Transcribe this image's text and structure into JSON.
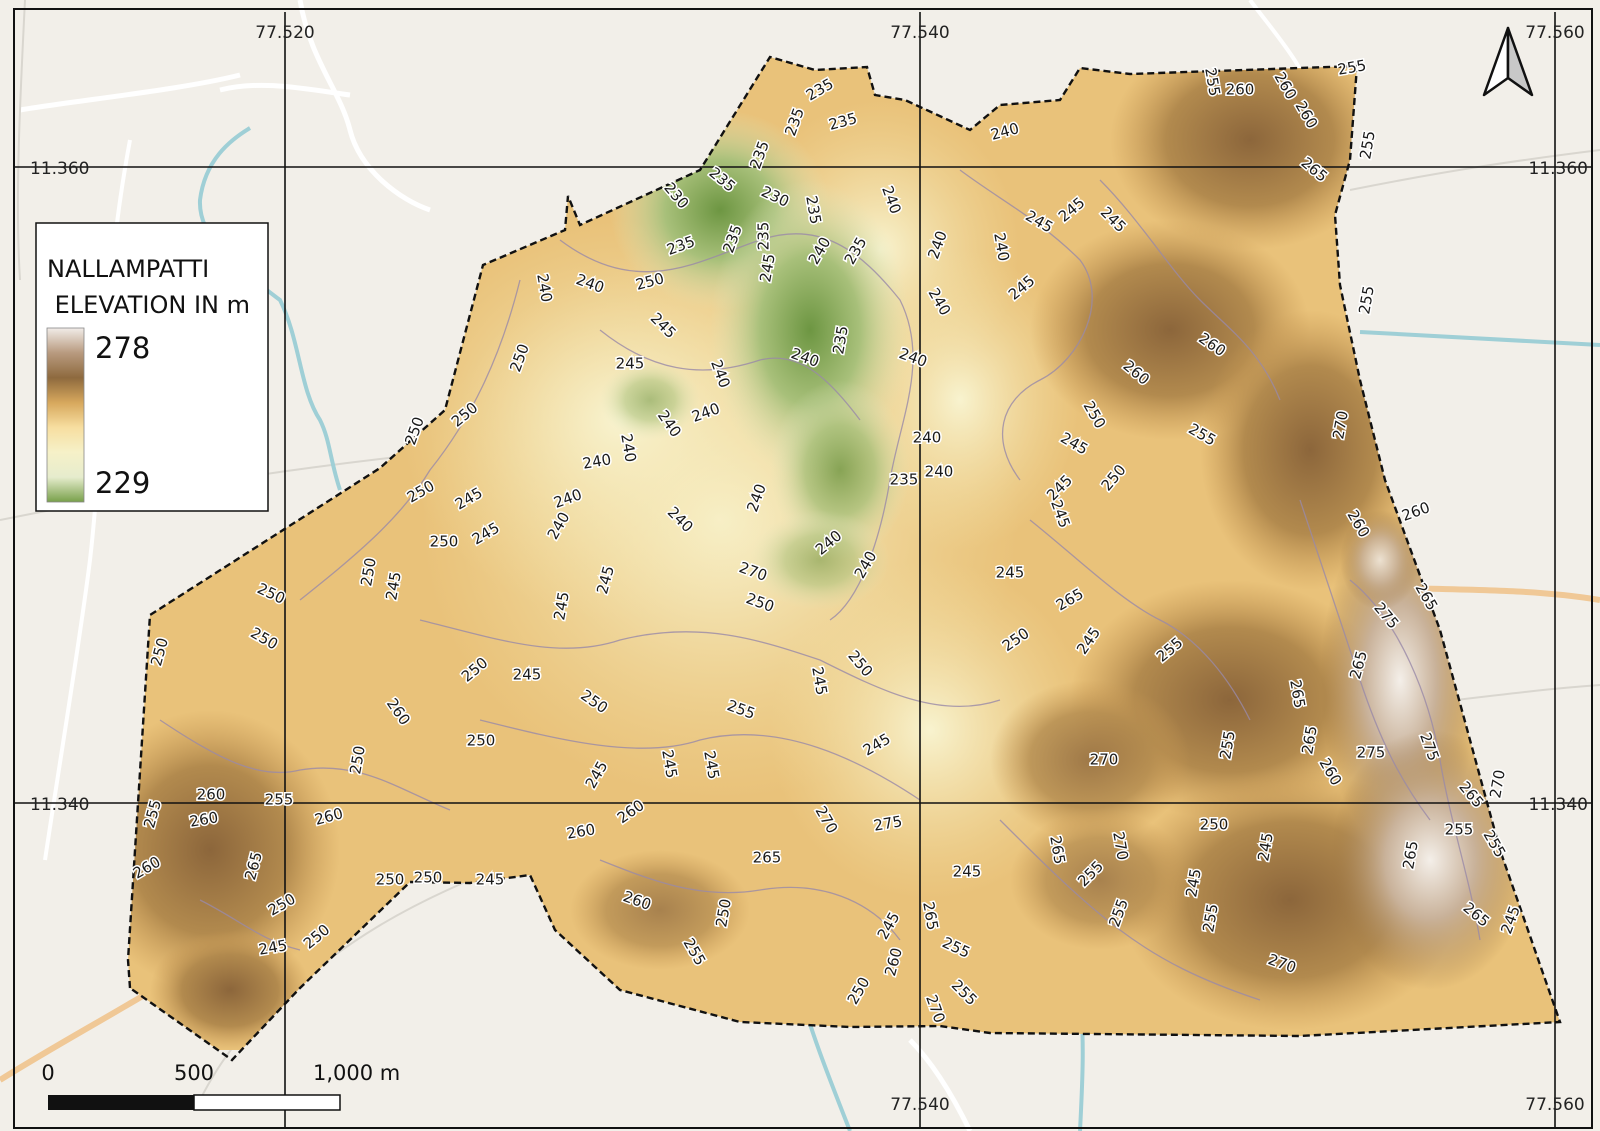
{
  "map": {
    "legend": {
      "title_line1": "NALLAMPATTI",
      "title_line2": " ELEVATION IN m",
      "max": "278",
      "min": "229",
      "colors": [
        "#f1ece8",
        "#b89a7f",
        "#8e6a3e",
        "#d7a85d",
        "#f7dea0",
        "#f6f1c8",
        "#e6eccd",
        "#78a04a"
      ]
    },
    "grid": {
      "top_longitudes": [
        "77.520",
        "77.540",
        "77.560"
      ],
      "bottom_longitudes": [
        "77.540",
        "77.560"
      ],
      "left_latitudes": [
        "11.360",
        "11.340"
      ],
      "right_latitudes": [
        "11.360",
        "11.340"
      ]
    },
    "scalebar": {
      "labels": [
        "0",
        "500",
        "1,000 m"
      ]
    },
    "north_arrow": "north-arrow-icon",
    "contour_labels": [
      "235",
      "235",
      "235",
      "235",
      "230",
      "235",
      "230",
      "235",
      "235",
      "235",
      "235",
      "240",
      "235",
      "245",
      "240",
      "240",
      "240",
      "240",
      "240",
      "255",
      "260",
      "255",
      "260",
      "260",
      "255",
      "265",
      "255",
      "245",
      "245",
      "245",
      "240",
      "250",
      "245",
      "240",
      "245",
      "245",
      "260",
      "260",
      "250",
      "240",
      "250",
      "235",
      "240",
      "240",
      "240",
      "255",
      "250",
      "245",
      "240",
      "245",
      "240",
      "240",
      "250",
      "245",
      "270",
      "240",
      "250",
      "260",
      "265",
      "240",
      "235",
      "250",
      "245",
      "250",
      "245",
      "245",
      "240",
      "240",
      "240",
      "240",
      "250",
      "260",
      "240",
      "270",
      "245",
      "245",
      "250",
      "275",
      "265",
      "240",
      "245",
      "255",
      "250",
      "245",
      "250",
      "245",
      "250",
      "250",
      "265",
      "250",
      "250",
      "245",
      "250",
      "255",
      "260",
      "265",
      "250",
      "250",
      "255",
      "265",
      "270",
      "275",
      "275",
      "270",
      "245",
      "245",
      "245",
      "245",
      "265",
      "260",
      "250",
      "255",
      "260",
      "260",
      "255",
      "275",
      "270",
      "245",
      "265",
      "255",
      "265",
      "260",
      "260",
      "260",
      "255",
      "260",
      "265",
      "250",
      "250",
      "245",
      "255",
      "270",
      "245",
      "265",
      "245",
      "245",
      "250",
      "265",
      "255",
      "260",
      "255",
      "250",
      "265",
      "250",
      "245",
      "245",
      "255",
      "255",
      "250",
      "255",
      "260",
      "270",
      "270"
    ]
  }
}
